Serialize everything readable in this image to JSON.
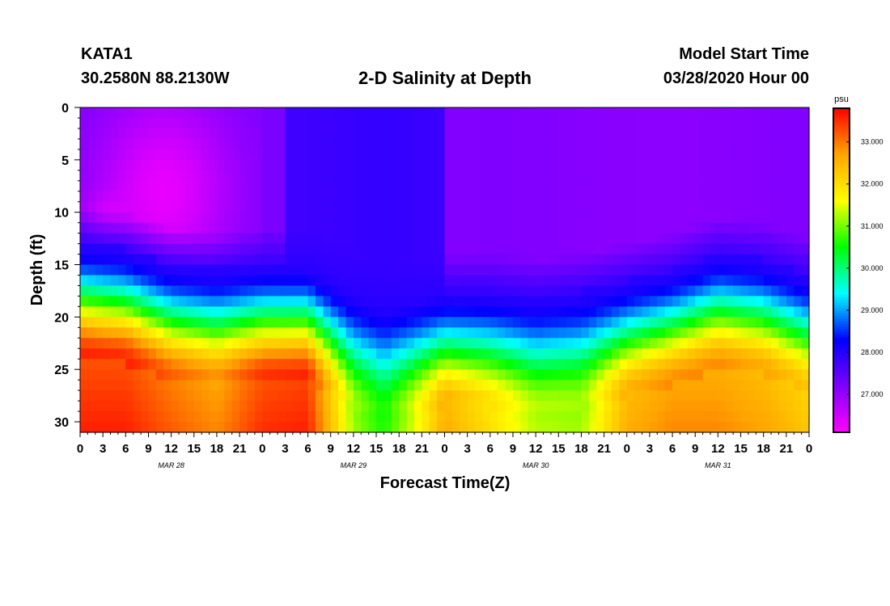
{
  "header": {
    "station": "KATA1",
    "coords": "30.2580N 88.2130W",
    "title": "2-D Salinity at Depth",
    "model_start_label": "Model Start Time",
    "model_start_date": "03/28/2020 Hour 00"
  },
  "colors": {
    "colormap": [
      "#ff00ff",
      "#8000ff",
      "#0000ff",
      "#00ffff",
      "#00ff00",
      "#ffff00",
      "#ffa500",
      "#ff0000"
    ]
  },
  "chart_data": {
    "type": "heatmap",
    "title": "2-D Salinity at Depth",
    "xlabel": "Forecast Time(Z)",
    "ylabel": "Depth (ft)",
    "x_ticks": [
      "0",
      "3",
      "6",
      "9",
      "12",
      "15",
      "18",
      "21",
      "0",
      "3",
      "6",
      "9",
      "12",
      "15",
      "18",
      "21",
      "0",
      "3",
      "6",
      "9",
      "12",
      "15",
      "18",
      "21",
      "0",
      "3",
      "6",
      "9",
      "12",
      "15",
      "18",
      "21",
      "0"
    ],
    "x_hours": [
      0,
      3,
      6,
      9,
      12,
      15,
      18,
      21,
      24,
      27,
      30,
      33,
      36,
      39,
      42,
      45,
      48,
      51,
      54,
      57,
      60,
      63,
      66,
      69,
      72,
      75,
      78,
      81,
      84,
      87,
      90,
      93,
      96
    ],
    "date_labels": [
      {
        "text": "MAR 28",
        "hour": 12
      },
      {
        "text": "MAR 29",
        "hour": 36
      },
      {
        "text": "MAR 30",
        "hour": 60
      },
      {
        "text": "MAR 31",
        "hour": 84
      }
    ],
    "y_ticks": [
      "0",
      "5",
      "10",
      "15",
      "20",
      "25",
      "30"
    ],
    "y_values": [
      0,
      5,
      10,
      15,
      20,
      25,
      30
    ],
    "xlim": [
      0,
      96
    ],
    "ylim": [
      0,
      31
    ],
    "colorbar": {
      "unit": "psu",
      "ticks": [
        "33.000",
        "32.000",
        "31.000",
        "30.000",
        "29.000",
        "28.000",
        "27.000"
      ],
      "tick_values": [
        33,
        32,
        31,
        30,
        29,
        28,
        27
      ],
      "range": [
        26.1,
        33.8
      ]
    },
    "halocline_hours": [
      0,
      6,
      12,
      18,
      24,
      30,
      36,
      40,
      44,
      48,
      54,
      60,
      66,
      72,
      78,
      84,
      90,
      96
    ],
    "halocline_depth_ft": [
      17.5,
      18,
      19.5,
      20,
      19.5,
      19.5,
      22,
      23,
      22.5,
      22,
      22,
      22.5,
      22,
      21,
      20,
      18.5,
      19,
      20.5
    ],
    "bottom_salinity_psu": [
      33.6,
      33.6,
      33.2,
      32.9,
      33.5,
      33.6,
      31.2,
      30.6,
      31.5,
      32.6,
      32.0,
      31.3,
      31.2,
      32.6,
      32.9,
      32.9,
      32.7,
      32.3
    ]
  }
}
